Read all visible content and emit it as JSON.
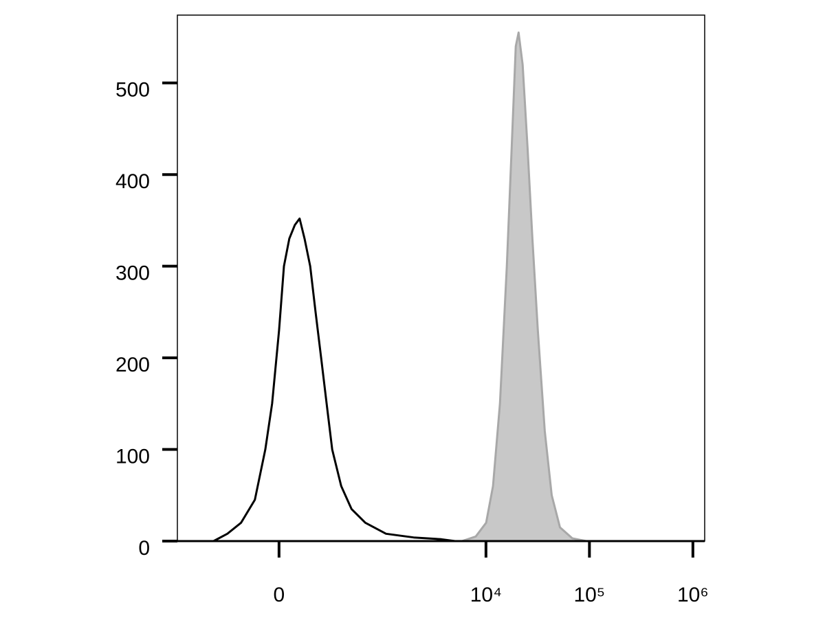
{
  "chart_data": {
    "type": "histogram-overlay",
    "xscale": "biexponential",
    "xlim": [
      -950,
      1300000
    ],
    "xticks": [
      0,
      {
        "value": 10000,
        "label": "10⁴"
      },
      {
        "value": 100000,
        "label": "10⁵"
      },
      {
        "value": 1000000,
        "label": "10⁶"
      }
    ],
    "ylim": [
      0,
      574
    ],
    "yticks": [
      0,
      100,
      200,
      300,
      400,
      500
    ],
    "series": [
      {
        "color": "#c8c8c8",
        "stroke": "#a8a8a8",
        "filled": true,
        "x": [
          5860,
          7970,
          10030,
          11700,
          13650,
          15900,
          17720,
          19420,
          20650,
          22630,
          25200,
          28100,
          31720,
          37000,
          43200,
          51900,
          68400,
          93100
        ],
        "values": [
          0,
          5,
          20,
          60,
          150,
          300,
          430,
          540,
          555,
          520,
          430,
          330,
          230,
          120,
          50,
          15,
          3,
          0
        ]
      },
      {
        "color": "#000000",
        "filled": false,
        "x": [
          -406,
          -284,
          -190,
          -113,
          -62,
          -31,
          0,
          22,
          46,
          72,
          95,
          120,
          150,
          181,
          216,
          254,
          296,
          374,
          482,
          668,
          1072,
          1994,
          3700,
          5020
        ],
        "values": [
          0,
          8,
          20,
          45,
          100,
          150,
          230,
          300,
          330,
          345,
          352,
          330,
          300,
          250,
          200,
          150,
          100,
          60,
          35,
          20,
          8,
          4,
          2,
          0
        ]
      }
    ]
  }
}
